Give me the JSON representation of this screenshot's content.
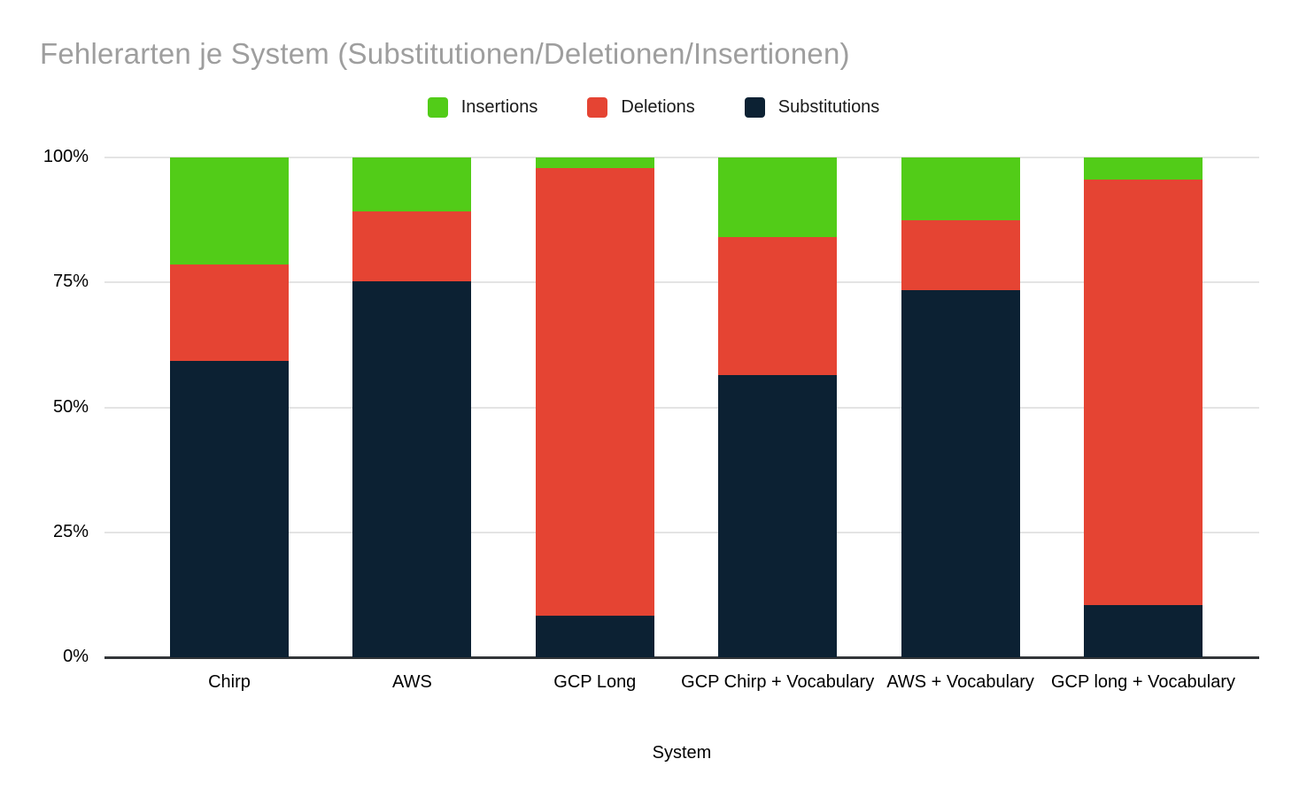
{
  "page": {
    "title": "Fehlerarten je System (Substitutionen/Deletionen/Insertionen)"
  },
  "legend": {
    "position": "top",
    "items": [
      "Insertions",
      "Deletions",
      "Substitutions"
    ]
  },
  "colors": {
    "insertions": "#52cc18",
    "deletions": "#e54433",
    "substitutions": "#0c2133",
    "title_gray": "#9e9e9e",
    "gridline": "#e4e4e4",
    "axis_line": "#333639"
  },
  "chart_data": {
    "type": "bar",
    "variant": "stacked-100-percent",
    "title": "Fehlerarten je System (Substitutionen/Deletionen/Insertionen)",
    "xlabel": "System",
    "ylabel": "",
    "ylim": [
      0,
      100
    ],
    "grid": true,
    "legend_position": "top",
    "y_ticks": [
      "0%",
      "25%",
      "50%",
      "75%",
      "100%"
    ],
    "y_tick_values": [
      0,
      25,
      50,
      75,
      100
    ],
    "categories": [
      "Chirp",
      "AWS",
      "GCP Long",
      "GCP Chirp + Vocabulary",
      "AWS + Vocabulary",
      "GCP long + Vocabulary"
    ],
    "stack_order_bottom_to_top": [
      "Substitutions",
      "Deletions",
      "Insertions"
    ],
    "series": [
      {
        "name": "Substitutions",
        "color": "#0c2133",
        "values": [
          59.3,
          75.2,
          8.4,
          56.5,
          73.5,
          10.4
        ]
      },
      {
        "name": "Deletions",
        "color": "#e54433",
        "values": [
          19.3,
          14.0,
          89.5,
          27.5,
          14.0,
          85.1
        ]
      },
      {
        "name": "Insertions",
        "color": "#52cc18",
        "values": [
          21.4,
          10.8,
          2.1,
          16.0,
          12.5,
          4.5
        ]
      }
    ]
  }
}
